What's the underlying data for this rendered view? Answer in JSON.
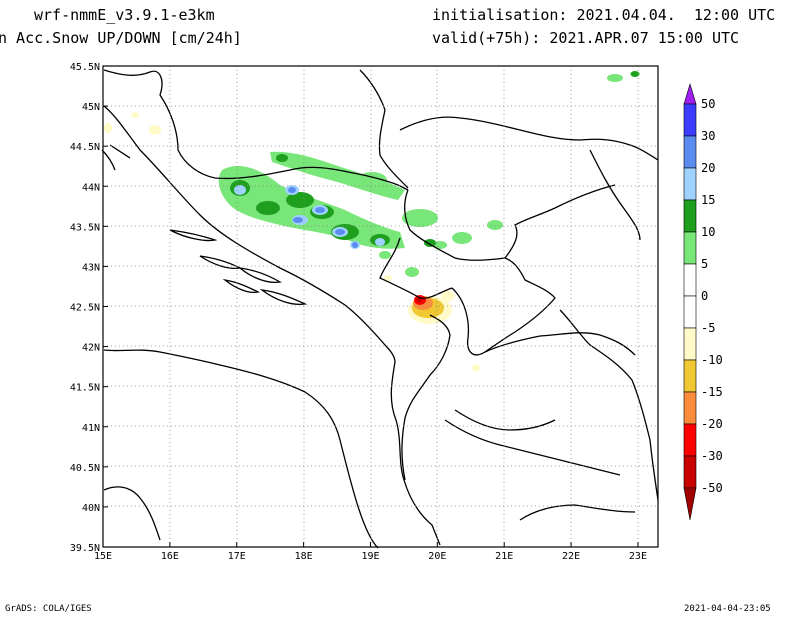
{
  "header": {
    "model": "wrf-nmmE_v3.9.1-e3km",
    "field": "n Acc.Snow UP/DOWN [cm/24h]",
    "init": "initialisation: 2021.04.04.  12:00 UTC",
    "valid": "valid(+75h): 2021.APR.07 15:00 UTC"
  },
  "footer": {
    "left": "GrADS: COLA/IGES",
    "right": "2021-04-04-23:05"
  },
  "axes": {
    "lon_ticks": [
      "15E",
      "16E",
      "17E",
      "18E",
      "19E",
      "20E",
      "21E",
      "22E",
      "23E"
    ],
    "lat_ticks": [
      "39.5N",
      "40N",
      "40.5N",
      "41N",
      "41.5N",
      "42N",
      "42.5N",
      "43N",
      "43.5N",
      "44N",
      "44.5N",
      "45N",
      "45.5N"
    ],
    "lon_range": [
      15,
      23.3
    ],
    "lat_range": [
      39.5,
      45.5
    ]
  },
  "colorbar": {
    "levels": [
      "50",
      "30",
      "20",
      "15",
      "10",
      "5",
      "0",
      "-5",
      "-10",
      "-15",
      "-20",
      "-30",
      "-50"
    ],
    "colors": [
      "#a01ef0",
      "#3c3cff",
      "#5a8cf0",
      "#a0d2ff",
      "#1ea01e",
      "#78e678",
      "#ffffff",
      "#ffffff",
      "#fffac8",
      "#f0c832",
      "#fa8c3c",
      "#ff0000",
      "#c80000",
      "#a00000"
    ]
  }
}
